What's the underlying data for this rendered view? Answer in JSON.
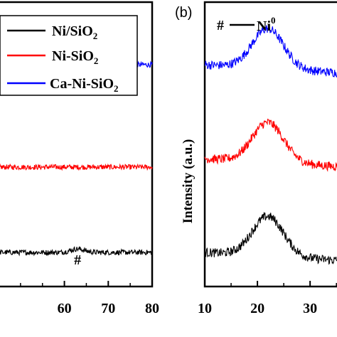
{
  "chart_data": [
    {
      "type": "line",
      "panel_label": "",
      "xlim": [
        45,
        80
      ],
      "x_ticks": [
        "60",
        "70",
        "80"
      ],
      "x_tick_values": [
        60,
        70,
        80
      ],
      "legend": [
        {
          "name_main": "Ni/SiO",
          "name_sub": "2",
          "color": "#000000"
        },
        {
          "name_main": "Ni-SiO",
          "name_sub": "2",
          "color": "#ff0000"
        },
        {
          "name_main": "Ca-Ni-SiO",
          "name_sub": "2",
          "color": "#0000ff"
        }
      ],
      "series": [
        {
          "name": "Ca-Ni-SiO2",
          "color": "#0000ff",
          "level": 0.78
        },
        {
          "name": "Ni-SiO2",
          "color": "#ff0000",
          "level": 0.42
        },
        {
          "name": "Ni/SiO2",
          "color": "#000000",
          "level": 0.12
        }
      ],
      "annotation": {
        "text": "#",
        "x": 63
      }
    },
    {
      "type": "line",
      "panel_label": "(b)",
      "xlim": [
        10,
        37
      ],
      "x_ticks": [
        "10",
        "20",
        "30"
      ],
      "x_tick_values": [
        10,
        20,
        30
      ],
      "ylabel": "Intensity (a.u.)",
      "legend_marker": {
        "symbol": "#",
        "label_main": "Ni",
        "label_sup": "0"
      },
      "series": [
        {
          "name": "Ca-Ni-SiO2",
          "color": "#0000ff",
          "baseline": 0.78,
          "peak_x": 22,
          "peak_height": 0.75
        },
        {
          "name": "Ni-SiO2",
          "color": "#ff0000",
          "baseline": 0.45,
          "peak_x": 22,
          "peak_height": 0.75
        },
        {
          "name": "Ni/SiO2",
          "color": "#000000",
          "baseline": 0.12,
          "peak_x": 22,
          "peak_height": 0.75
        }
      ]
    }
  ]
}
